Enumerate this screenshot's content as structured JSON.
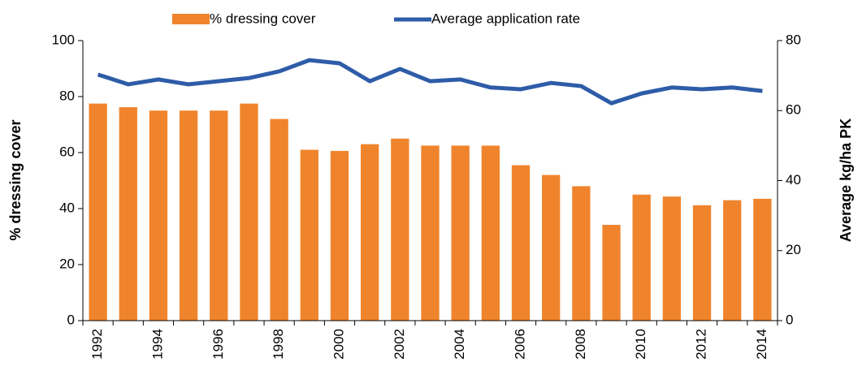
{
  "chart_data": {
    "type": "bar-line",
    "categories": [
      "1992",
      null,
      "1994",
      null,
      "1996",
      null,
      "1998",
      null,
      "2000",
      null,
      "2002",
      null,
      "2004",
      null,
      "2006",
      null,
      "2008",
      null,
      "2010",
      null,
      "2012",
      null,
      "2014"
    ],
    "series": [
      {
        "name": "% dressing cover",
        "type": "bar",
        "color": "#f0842c",
        "values": [
          77.5,
          76.2,
          75,
          75,
          75,
          77.5,
          72,
          61,
          60.6,
          63,
          65,
          62.5,
          62.5,
          62.5,
          55.5,
          52,
          48,
          34.2,
          45,
          44.3,
          41.2,
          43,
          43.5
        ]
      },
      {
        "name": "Average application rate",
        "type": "line",
        "axis": "y2",
        "color": "#2e5ca8",
        "values": [
          70.3,
          67.5,
          68.9,
          67.5,
          68.4,
          69.3,
          71.2,
          74.4,
          73.5,
          68.4,
          71.9,
          68.4,
          68.9,
          66.6,
          66.1,
          67.9,
          67.0,
          62.1,
          64.9,
          66.6,
          66.1,
          66.6,
          65.6
        ]
      }
    ],
    "ylabel": "% dressing cover",
    "y2label": "Average kg/ha PK",
    "ylim": [
      0,
      100
    ],
    "yticks": [
      0,
      20,
      40,
      60,
      80,
      100
    ],
    "y2lim": [
      0,
      80
    ],
    "y2ticks": [
      0,
      20,
      40,
      60,
      80
    ],
    "legend": "top"
  }
}
